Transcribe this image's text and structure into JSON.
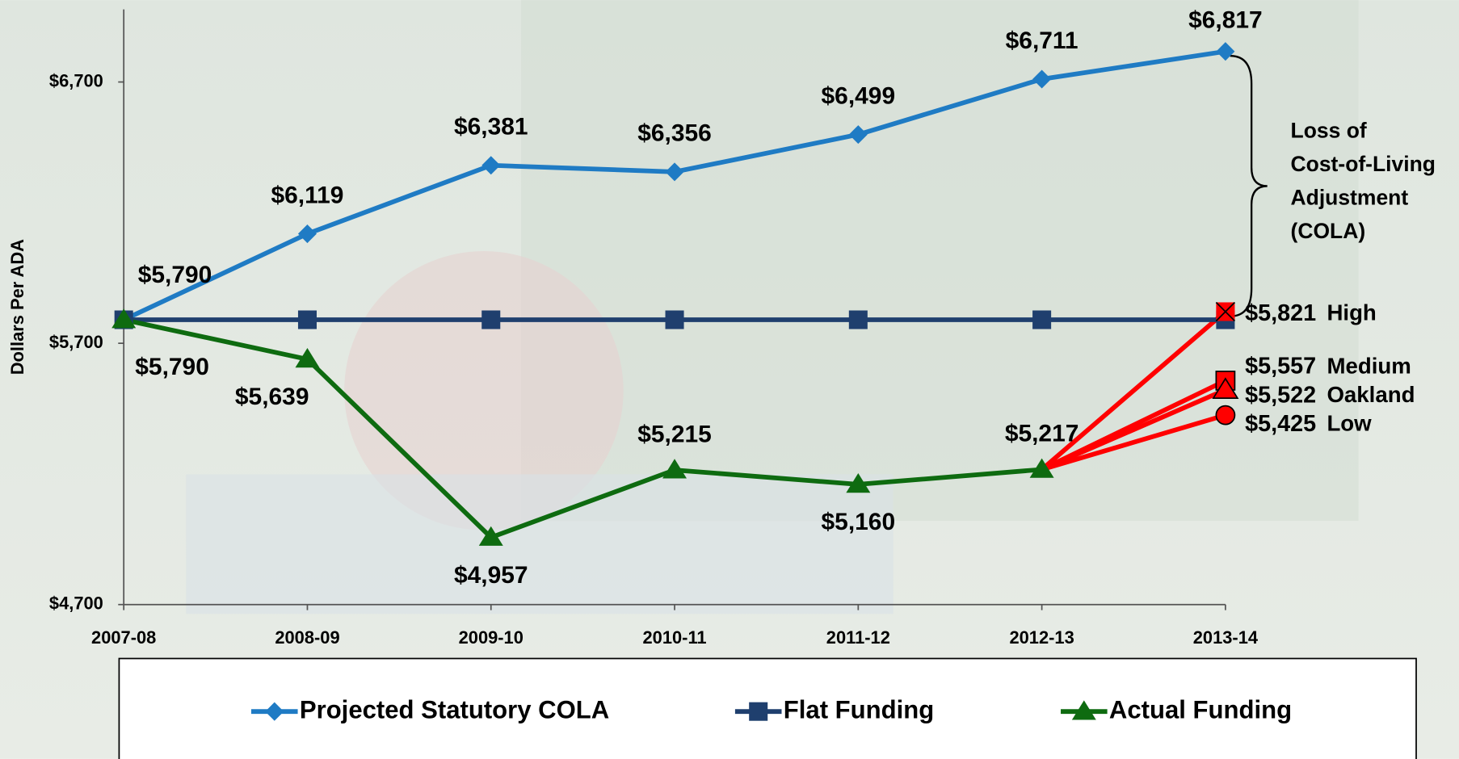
{
  "chart_data": {
    "type": "line",
    "y_axis_label": "Dollars Per ADA",
    "categories": [
      "2007-08",
      "2008-09",
      "2009-10",
      "2010-11",
      "2011-12",
      "2012-13",
      "2013-14"
    ],
    "ylim": [
      4700,
      6978
    ],
    "yticks": [
      {
        "value": 4700,
        "label": "$4,700"
      },
      {
        "value": 5700,
        "label": "$5,700"
      },
      {
        "value": 6700,
        "label": "$6,700"
      }
    ],
    "series": [
      {
        "name": "Projected Statutory COLA",
        "color": "#1f7bc4",
        "marker": "diamond",
        "values": [
          5790,
          6119,
          6381,
          6356,
          6499,
          6711,
          6817
        ],
        "value_labels": [
          "$5,790",
          "$6,119",
          "$6,381",
          "$6,356",
          "$6,499",
          "$6,711",
          "$6,817"
        ]
      },
      {
        "name": "Flat Funding",
        "color": "#1f3f6e",
        "marker": "square",
        "values": [
          5790,
          5790,
          5790,
          5790,
          5790,
          5790,
          5790
        ]
      },
      {
        "name": "Actual Funding",
        "color": "#0e6b10",
        "marker": "triangle",
        "values": [
          5790,
          5639,
          4957,
          5215,
          5160,
          5217,
          null
        ],
        "value_labels": [
          "$5,790",
          "$5,639",
          "$4,957",
          "$5,215",
          "$5,160",
          "$5,217",
          null
        ]
      }
    ],
    "scenarios": [
      {
        "name": "High",
        "value": 5821,
        "value_label": "$5,821",
        "marker": "x"
      },
      {
        "name": "Medium",
        "value": 5557,
        "value_label": "$5,557",
        "marker": "square"
      },
      {
        "name": "Oakland",
        "value": 5522,
        "value_label": "$5,522",
        "marker": "triangle"
      },
      {
        "name": "Low",
        "value": 5425,
        "value_label": "$5,425",
        "marker": "circle"
      }
    ],
    "scenario_color": "#ff0000",
    "annotation": [
      "Loss of",
      "Cost-of-Living",
      "Adjustment",
      "(COLA)"
    ]
  }
}
